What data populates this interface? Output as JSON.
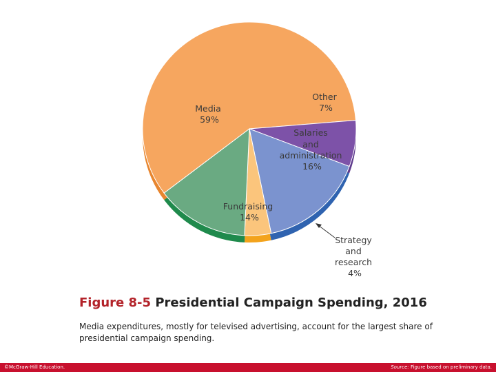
{
  "chart_data": {
    "type": "pie",
    "title": "",
    "slices": [
      {
        "label": "Media",
        "value": 59,
        "pct_label": "59%",
        "color": "#f6a65f",
        "side_color": "#e8862f"
      },
      {
        "label": "Other",
        "value": 7,
        "pct_label": "7%",
        "color": "#7d52a8",
        "side_color": "#5d3a8c"
      },
      {
        "label": "Salaries and administration",
        "value": 16,
        "pct_label": "16%",
        "color": "#7b93cf",
        "side_color": "#2f63b0"
      },
      {
        "label": "Strategy and research",
        "value": 4,
        "pct_label": "4%",
        "color": "#fbc57c",
        "side_color": "#f3a31c"
      },
      {
        "label": "Fundraising",
        "value": 14,
        "pct_label": "14%",
        "color": "#6aaa82",
        "side_color": "#1f8a4c"
      }
    ]
  },
  "caption": {
    "figure_number": "Figure 8-5",
    "figure_title": "Presidential Campaign Spending, 2016",
    "description": "Media expenditures, mostly for televised advertising, account for the largest share of presidential campaign spending."
  },
  "footer": {
    "copyright": "©McGraw-Hill Education.",
    "source_label": "Source:",
    "source_text": "Figure based on preliminary data."
  }
}
